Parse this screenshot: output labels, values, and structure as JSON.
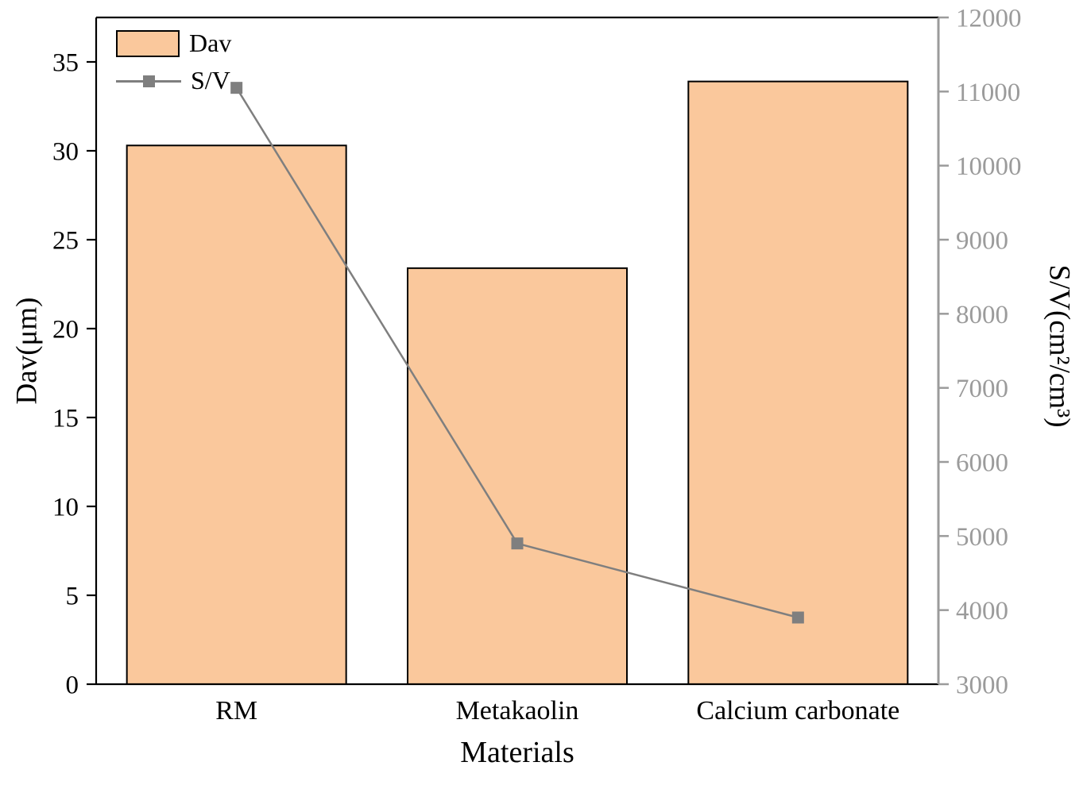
{
  "chart_data": {
    "type": "bar",
    "categories": [
      "RM",
      "Metakaolin",
      "Calcium carbonate"
    ],
    "series": [
      {
        "name": "Dav",
        "type": "bar",
        "axis": "left",
        "values": [
          30.3,
          23.4,
          33.9
        ]
      },
      {
        "name": "S/V",
        "type": "line",
        "axis": "right",
        "values": [
          11050,
          4900,
          3900
        ]
      }
    ],
    "title": "",
    "xlabel": "Materials",
    "ylabel_left": "Dav(μm)",
    "ylabel_right": "S/V(cm²/cm³)",
    "ylim_left": [
      0,
      37.5
    ],
    "yticks_left": [
      0,
      5,
      10,
      15,
      20,
      25,
      30,
      35
    ],
    "ylim_right": [
      3000,
      12000
    ],
    "yticks_right": [
      3000,
      4000,
      5000,
      6000,
      7000,
      8000,
      9000,
      10000,
      11000,
      12000
    ],
    "grid": false,
    "legend_position": "top-left",
    "colors": {
      "bar_fill": "#FAC89C",
      "bar_stroke": "#000000",
      "line": "#7F7F7F",
      "marker": "#7F7F7F",
      "right_axis": "#9B9B9B",
      "axis": "#000000"
    }
  }
}
